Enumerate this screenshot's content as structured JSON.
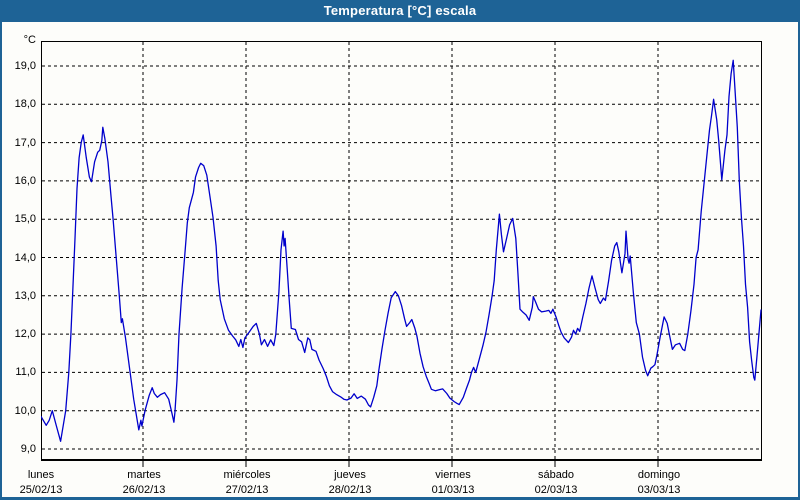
{
  "window": {
    "title": "Temperatura [°C] escala"
  },
  "chart_data": {
    "type": "line",
    "title": "Temperatura [°C] escala",
    "y_unit_label": "°C",
    "ylim": [
      9.0,
      19.0
    ],
    "y_tick_step": 1.0,
    "y_tick_values": [
      19,
      18,
      17,
      16,
      15,
      14,
      13,
      12,
      11,
      10,
      9
    ],
    "y_tick_labels": [
      "19,0",
      "18,0",
      "17,0",
      "16,0",
      "15,0",
      "14,0",
      "13,0",
      "12,0",
      "11,0",
      "10,0",
      "9,0"
    ],
    "x_days": [
      {
        "name": "lunes",
        "date": "25/02/13"
      },
      {
        "name": "martes",
        "date": "26/02/13"
      },
      {
        "name": "miércoles",
        "date": "27/02/13"
      },
      {
        "name": "jueves",
        "date": "28/02/13"
      },
      {
        "name": "viernes",
        "date": "01/03/13"
      },
      {
        "name": "sábado",
        "date": "02/03/13"
      },
      {
        "name": "domingo",
        "date": "03/03/13"
      }
    ],
    "grid": "dashed-black",
    "legend": "none",
    "line_color": "#0000cc",
    "series": [
      {
        "name": "Temperatura",
        "points": [
          [
            0.0,
            9.85
          ],
          [
            0.05,
            9.62
          ],
          [
            0.08,
            9.75
          ],
          [
            0.11,
            10.0
          ],
          [
            0.15,
            9.6
          ],
          [
            0.19,
            9.2
          ],
          [
            0.24,
            10.0
          ],
          [
            0.27,
            11.0
          ],
          [
            0.29,
            12.0
          ],
          [
            0.31,
            13.2
          ],
          [
            0.33,
            14.5
          ],
          [
            0.35,
            15.8
          ],
          [
            0.37,
            16.6
          ],
          [
            0.39,
            17.0
          ],
          [
            0.41,
            17.2
          ],
          [
            0.44,
            16.6
          ],
          [
            0.47,
            16.1
          ],
          [
            0.49,
            15.98
          ],
          [
            0.52,
            16.5
          ],
          [
            0.55,
            16.75
          ],
          [
            0.57,
            16.8
          ],
          [
            0.59,
            17.05
          ],
          [
            0.6,
            17.4
          ],
          [
            0.62,
            17.1
          ],
          [
            0.65,
            16.5
          ],
          [
            0.68,
            15.6
          ],
          [
            0.7,
            15.0
          ],
          [
            0.73,
            14.0
          ],
          [
            0.76,
            13.0
          ],
          [
            0.78,
            12.3
          ],
          [
            0.79,
            12.4
          ],
          [
            0.82,
            11.9
          ],
          [
            0.86,
            11.1
          ],
          [
            0.9,
            10.3
          ],
          [
            0.95,
            9.5
          ],
          [
            0.97,
            9.75
          ],
          [
            0.98,
            9.6
          ],
          [
            1.01,
            10.0
          ],
          [
            1.05,
            10.4
          ],
          [
            1.08,
            10.6
          ],
          [
            1.1,
            10.45
          ],
          [
            1.13,
            10.35
          ],
          [
            1.16,
            10.42
          ],
          [
            1.2,
            10.47
          ],
          [
            1.24,
            10.3
          ],
          [
            1.27,
            9.95
          ],
          [
            1.29,
            9.7
          ],
          [
            1.3,
            9.95
          ],
          [
            1.32,
            10.8
          ],
          [
            1.34,
            12.0
          ],
          [
            1.37,
            13.2
          ],
          [
            1.4,
            14.2
          ],
          [
            1.42,
            14.9
          ],
          [
            1.44,
            15.3
          ],
          [
            1.48,
            15.7
          ],
          [
            1.5,
            16.1
          ],
          [
            1.53,
            16.35
          ],
          [
            1.55,
            16.46
          ],
          [
            1.58,
            16.4
          ],
          [
            1.61,
            16.15
          ],
          [
            1.64,
            15.6
          ],
          [
            1.67,
            15.05
          ],
          [
            1.7,
            14.3
          ],
          [
            1.72,
            13.4
          ],
          [
            1.74,
            12.9
          ],
          [
            1.78,
            12.4
          ],
          [
            1.82,
            12.1
          ],
          [
            1.86,
            11.95
          ],
          [
            1.89,
            11.85
          ],
          [
            1.92,
            11.68
          ],
          [
            1.94,
            11.86
          ],
          [
            1.96,
            11.65
          ],
          [
            1.98,
            11.9
          ],
          [
            2.02,
            12.05
          ],
          [
            2.06,
            12.2
          ],
          [
            2.09,
            12.28
          ],
          [
            2.12,
            12.0
          ],
          [
            2.14,
            11.72
          ],
          [
            2.17,
            11.86
          ],
          [
            2.2,
            11.68
          ],
          [
            2.23,
            11.85
          ],
          [
            2.26,
            11.7
          ],
          [
            2.28,
            12.0
          ],
          [
            2.31,
            13.1
          ],
          [
            2.33,
            14.2
          ],
          [
            2.35,
            14.69
          ],
          [
            2.36,
            14.3
          ],
          [
            2.37,
            14.5
          ],
          [
            2.39,
            13.7
          ],
          [
            2.41,
            12.9
          ],
          [
            2.43,
            12.15
          ],
          [
            2.47,
            12.12
          ],
          [
            2.5,
            11.86
          ],
          [
            2.53,
            11.8
          ],
          [
            2.56,
            11.52
          ],
          [
            2.59,
            11.9
          ],
          [
            2.61,
            11.85
          ],
          [
            2.63,
            11.6
          ],
          [
            2.67,
            11.55
          ],
          [
            2.7,
            11.32
          ],
          [
            2.74,
            11.1
          ],
          [
            2.77,
            10.9
          ],
          [
            2.8,
            10.65
          ],
          [
            2.83,
            10.5
          ],
          [
            2.87,
            10.42
          ],
          [
            2.91,
            10.36
          ],
          [
            2.94,
            10.3
          ],
          [
            2.97,
            10.28
          ],
          [
            3.01,
            10.33
          ],
          [
            3.04,
            10.44
          ],
          [
            3.07,
            10.32
          ],
          [
            3.11,
            10.38
          ],
          [
            3.15,
            10.3
          ],
          [
            3.18,
            10.15
          ],
          [
            3.2,
            10.1
          ],
          [
            3.23,
            10.35
          ],
          [
            3.26,
            10.65
          ],
          [
            3.28,
            11.05
          ],
          [
            3.31,
            11.6
          ],
          [
            3.34,
            12.1
          ],
          [
            3.37,
            12.55
          ],
          [
            3.4,
            12.95
          ],
          [
            3.44,
            13.11
          ],
          [
            3.47,
            13.0
          ],
          [
            3.5,
            12.75
          ],
          [
            3.53,
            12.4
          ],
          [
            3.55,
            12.2
          ],
          [
            3.58,
            12.3
          ],
          [
            3.6,
            12.38
          ],
          [
            3.63,
            12.15
          ],
          [
            3.65,
            11.95
          ],
          [
            3.68,
            11.5
          ],
          [
            3.71,
            11.15
          ],
          [
            3.74,
            10.9
          ],
          [
            3.77,
            10.7
          ],
          [
            3.79,
            10.56
          ],
          [
            3.83,
            10.52
          ],
          [
            3.87,
            10.55
          ],
          [
            3.9,
            10.57
          ],
          [
            3.94,
            10.45
          ],
          [
            3.97,
            10.33
          ],
          [
            4.01,
            10.24
          ],
          [
            4.04,
            10.19
          ],
          [
            4.06,
            10.16
          ],
          [
            4.1,
            10.35
          ],
          [
            4.13,
            10.58
          ],
          [
            4.16,
            10.8
          ],
          [
            4.18,
            11.0
          ],
          [
            4.2,
            11.13
          ],
          [
            4.22,
            11.0
          ],
          [
            4.25,
            11.3
          ],
          [
            4.29,
            11.7
          ],
          [
            4.32,
            12.05
          ],
          [
            4.35,
            12.5
          ],
          [
            4.38,
            13.0
          ],
          [
            4.4,
            13.4
          ],
          [
            4.42,
            14.2
          ],
          [
            4.44,
            14.8
          ],
          [
            4.45,
            15.13
          ],
          [
            4.47,
            14.6
          ],
          [
            4.49,
            14.15
          ],
          [
            4.52,
            14.5
          ],
          [
            4.55,
            14.85
          ],
          [
            4.58,
            15.02
          ],
          [
            4.61,
            14.5
          ],
          [
            4.63,
            13.6
          ],
          [
            4.65,
            12.65
          ],
          [
            4.68,
            12.57
          ],
          [
            4.71,
            12.5
          ],
          [
            4.74,
            12.36
          ],
          [
            4.77,
            12.7
          ],
          [
            4.78,
            12.98
          ],
          [
            4.8,
            12.85
          ],
          [
            4.83,
            12.65
          ],
          [
            4.86,
            12.58
          ],
          [
            4.9,
            12.6
          ],
          [
            4.93,
            12.62
          ],
          [
            4.95,
            12.54
          ],
          [
            4.97,
            12.65
          ],
          [
            5.0,
            12.45
          ],
          [
            5.03,
            12.2
          ],
          [
            5.05,
            12.05
          ],
          [
            5.08,
            11.9
          ],
          [
            5.12,
            11.78
          ],
          [
            5.15,
            11.92
          ],
          [
            5.17,
            12.1
          ],
          [
            5.19,
            12.0
          ],
          [
            5.21,
            12.15
          ],
          [
            5.23,
            12.07
          ],
          [
            5.26,
            12.45
          ],
          [
            5.29,
            12.8
          ],
          [
            5.32,
            13.2
          ],
          [
            5.35,
            13.52
          ],
          [
            5.38,
            13.2
          ],
          [
            5.41,
            12.9
          ],
          [
            5.43,
            12.8
          ],
          [
            5.46,
            12.94
          ],
          [
            5.48,
            12.88
          ],
          [
            5.51,
            13.37
          ],
          [
            5.54,
            13.93
          ],
          [
            5.57,
            14.3
          ],
          [
            5.59,
            14.39
          ],
          [
            5.61,
            14.15
          ],
          [
            5.64,
            13.6
          ],
          [
            5.67,
            14.1
          ],
          [
            5.68,
            14.69
          ],
          [
            5.7,
            13.95
          ],
          [
            5.71,
            13.85
          ],
          [
            5.72,
            14.04
          ],
          [
            5.75,
            13.1
          ],
          [
            5.78,
            12.3
          ],
          [
            5.81,
            12.0
          ],
          [
            5.84,
            11.4
          ],
          [
            5.87,
            11.05
          ],
          [
            5.89,
            10.91
          ],
          [
            5.92,
            11.11
          ],
          [
            5.94,
            11.15
          ],
          [
            5.96,
            11.2
          ],
          [
            5.98,
            11.45
          ],
          [
            6.01,
            11.9
          ],
          [
            6.05,
            12.45
          ],
          [
            6.08,
            12.28
          ],
          [
            6.1,
            12.0
          ],
          [
            6.13,
            11.6
          ],
          [
            6.16,
            11.72
          ],
          [
            6.2,
            11.76
          ],
          [
            6.23,
            11.6
          ],
          [
            6.25,
            11.57
          ],
          [
            6.28,
            12.0
          ],
          [
            6.31,
            12.6
          ],
          [
            6.34,
            13.3
          ],
          [
            6.36,
            14.0
          ],
          [
            6.38,
            14.2
          ],
          [
            6.41,
            15.2
          ],
          [
            6.44,
            16.0
          ],
          [
            6.47,
            16.8
          ],
          [
            6.49,
            17.33
          ],
          [
            6.51,
            17.7
          ],
          [
            6.53,
            18.13
          ],
          [
            6.56,
            17.6
          ],
          [
            6.58,
            17.05
          ],
          [
            6.61,
            16.03
          ],
          [
            6.64,
            16.8
          ],
          [
            6.66,
            17.2
          ],
          [
            6.68,
            18.2
          ],
          [
            6.7,
            18.8
          ],
          [
            6.72,
            19.15
          ],
          [
            6.74,
            18.3
          ],
          [
            6.76,
            17.4
          ],
          [
            6.78,
            16.0
          ],
          [
            6.8,
            15.05
          ],
          [
            6.82,
            14.3
          ],
          [
            6.84,
            13.3
          ],
          [
            6.86,
            12.7
          ],
          [
            6.88,
            11.8
          ],
          [
            6.9,
            11.3
          ],
          [
            6.92,
            10.87
          ],
          [
            6.93,
            10.8
          ],
          [
            6.95,
            11.4
          ],
          [
            6.97,
            12.0
          ],
          [
            6.99,
            12.63
          ]
        ]
      }
    ]
  },
  "colors": {
    "titlebar": "#1e6396",
    "window_border": "#1e6396",
    "plot_background": "#fdfdfa",
    "grid": "#000000",
    "line": "#0000cc"
  }
}
